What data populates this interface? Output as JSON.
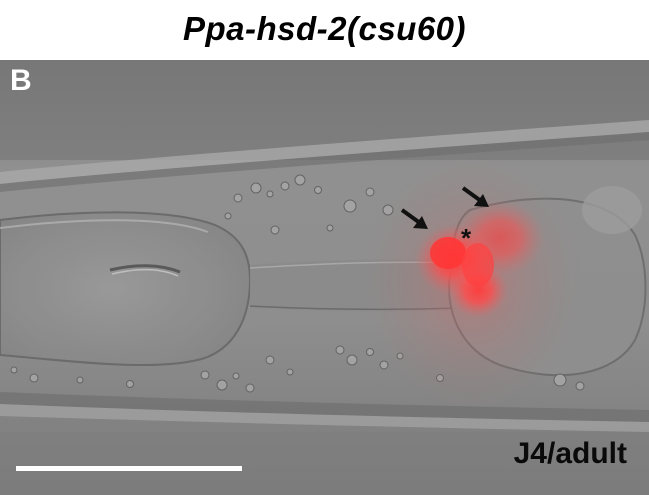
{
  "figure": {
    "title": "Ppa-hsd-2(csu60)",
    "panel_label": "B",
    "stage_label": "J4/adult",
    "annotation_asterisk": "*",
    "colors": {
      "background_gray": "#8a8a8a",
      "reporter_red": "#ff4a4a",
      "scale_bar": "#ffffff",
      "arrow": "#111111"
    },
    "icons": [
      "arrow-icon",
      "arrow-icon"
    ]
  }
}
